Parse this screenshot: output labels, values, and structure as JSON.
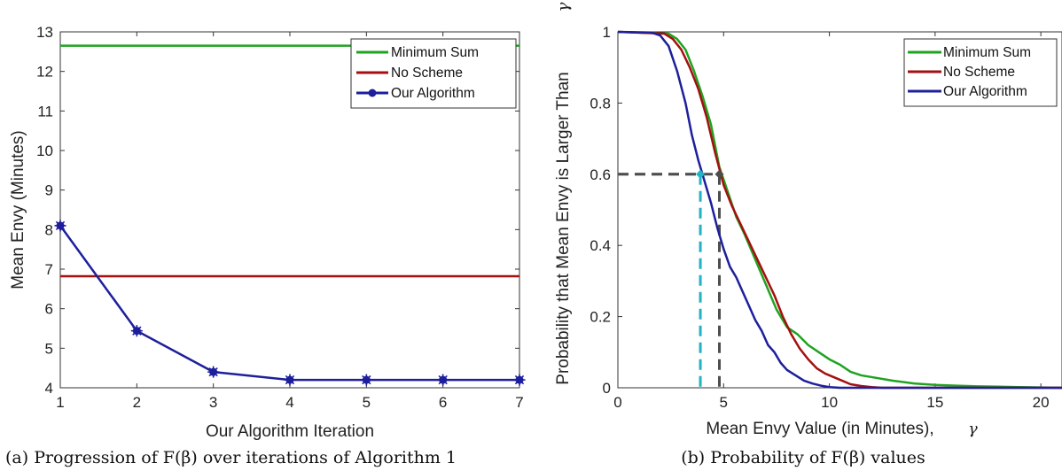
{
  "colors": {
    "minimum_sum": "#1fa31f",
    "no_scheme": "#a50f0f",
    "our_algorithm": "#1d1f9c",
    "cyan_marker": "#22b3c4",
    "gray_marker": "#4d4d4d"
  },
  "captions": {
    "left": "(a) Progression of F(β) over iterations of Algorithm 1",
    "right": "(b) Probability of F(β) values"
  },
  "chart_data": [
    {
      "type": "line",
      "xlabel": "Our Algorithm Iteration",
      "ylabel": "Mean Envy (Minutes)",
      "xlim": [
        1,
        7
      ],
      "ylim": [
        4,
        13
      ],
      "xticks": [
        "1",
        "2",
        "3",
        "4",
        "5",
        "6",
        "7"
      ],
      "yticks": [
        "4",
        "5",
        "6",
        "7",
        "8",
        "9",
        "10",
        "11",
        "12",
        "13"
      ],
      "grid": false,
      "legend_position": "top-right",
      "x": [
        1,
        2,
        3,
        4,
        5,
        6,
        7
      ],
      "series": [
        {
          "name": "Minimum Sum",
          "values": [
            12.65,
            12.65,
            12.65,
            12.65,
            12.65,
            12.65,
            12.65
          ],
          "color": "#1fa31f",
          "marker": "none"
        },
        {
          "name": "No Scheme",
          "values": [
            6.82,
            6.82,
            6.82,
            6.82,
            6.82,
            6.82,
            6.82
          ],
          "color": "#a50f0f",
          "marker": "none"
        },
        {
          "name": "Our Algorithm",
          "values": [
            8.1,
            5.44,
            4.4,
            4.2,
            4.2,
            4.2,
            4.2
          ],
          "color": "#1d1f9c",
          "marker": "asterisk"
        }
      ]
    },
    {
      "type": "line",
      "xlabel": "Mean Envy Value (in Minutes),",
      "xlabel_symbol": "γ",
      "ylabel": "Probability that Mean Envy is Larger Than",
      "ylabel_symbol": "γ",
      "xlim": [
        0,
        21
      ],
      "ylim": [
        0,
        1
      ],
      "xticks": [
        "0",
        "5",
        "10",
        "15",
        "20"
      ],
      "yticks": [
        "0",
        "0.2",
        "0.4",
        "0.6",
        "0.8",
        "1"
      ],
      "grid": false,
      "legend_position": "top-right",
      "series": [
        {
          "name": "Minimum Sum",
          "color": "#1fa31f",
          "x": [
            0,
            2.4,
            2.8,
            3.2,
            3.6,
            4.0,
            4.4,
            4.8,
            5.2,
            5.6,
            6.0,
            6.5,
            7.0,
            7.5,
            8.0,
            8.5,
            9.0,
            9.5,
            10.0,
            10.5,
            11.0,
            11.5,
            12.0,
            13.0,
            14.0,
            15.0,
            16.0,
            17.0,
            18.0,
            19.0,
            20.0,
            21.0
          ],
          "y": [
            1.0,
            0.995,
            0.98,
            0.95,
            0.89,
            0.82,
            0.74,
            0.62,
            0.55,
            0.48,
            0.43,
            0.36,
            0.29,
            0.22,
            0.17,
            0.15,
            0.12,
            0.1,
            0.08,
            0.065,
            0.045,
            0.035,
            0.03,
            0.02,
            0.012,
            0.008,
            0.006,
            0.004,
            0.003,
            0.002,
            0.001,
            0.0
          ]
        },
        {
          "name": "No Scheme",
          "color": "#a50f0f",
          "x": [
            0,
            2.2,
            2.6,
            3.0,
            3.4,
            3.8,
            4.2,
            4.6,
            5.0,
            5.4,
            5.8,
            6.2,
            6.6,
            7.0,
            7.4,
            7.8,
            8.2,
            8.6,
            9.0,
            9.4,
            9.8,
            10.2,
            10.6,
            11.0,
            11.5,
            12.0,
            12.5,
            21.0
          ],
          "y": [
            1.0,
            0.995,
            0.98,
            0.95,
            0.9,
            0.84,
            0.76,
            0.66,
            0.57,
            0.51,
            0.46,
            0.41,
            0.36,
            0.31,
            0.26,
            0.2,
            0.15,
            0.11,
            0.08,
            0.055,
            0.04,
            0.03,
            0.02,
            0.01,
            0.005,
            0.002,
            0.0,
            0.0
          ]
        },
        {
          "name": "Our Algorithm",
          "color": "#1d1f9c",
          "x": [
            0,
            1.6,
            2.0,
            2.4,
            2.8,
            3.2,
            3.5,
            3.8,
            4.1,
            4.4,
            4.7,
            5.0,
            5.3,
            5.6,
            5.9,
            6.2,
            6.5,
            6.8,
            7.1,
            7.4,
            7.7,
            8.0,
            8.4,
            8.8,
            9.2,
            9.6,
            10.0,
            10.5,
            21.0
          ],
          "y": [
            1.0,
            0.998,
            0.99,
            0.96,
            0.89,
            0.8,
            0.71,
            0.64,
            0.58,
            0.52,
            0.45,
            0.39,
            0.34,
            0.31,
            0.27,
            0.23,
            0.19,
            0.16,
            0.12,
            0.1,
            0.07,
            0.05,
            0.035,
            0.02,
            0.012,
            0.006,
            0.002,
            0.0,
            0.0
          ]
        }
      ],
      "markers": [
        {
          "x": 3.9,
          "y": 0.6,
          "color": "#22b3c4"
        },
        {
          "x": 4.8,
          "y": 0.6,
          "color": "#4d4d4d"
        }
      ]
    }
  ]
}
